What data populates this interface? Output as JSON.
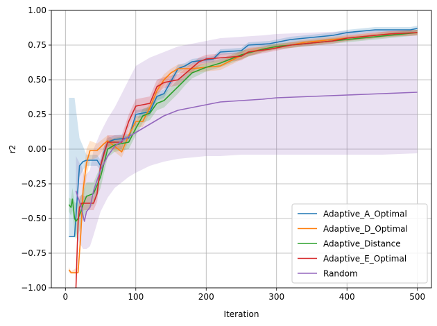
{
  "chart_data": {
    "type": "line",
    "title": "",
    "xlabel": "Iteration",
    "ylabel": "r2",
    "xlim": [
      -20,
      520
    ],
    "ylim": [
      -1.0,
      1.0
    ],
    "xticks": [
      0,
      100,
      200,
      300,
      400,
      500
    ],
    "xtick_labels": [
      "0",
      "100",
      "200",
      "300",
      "400",
      "500"
    ],
    "yticks": [
      -1.0,
      -0.75,
      -0.5,
      -0.25,
      0.0,
      0.25,
      0.5,
      0.75,
      1.0
    ],
    "ytick_labels": [
      "−1.00",
      "−0.75",
      "−0.50",
      "−0.25",
      "0.00",
      "0.25",
      "0.50",
      "0.75",
      "1.00"
    ],
    "grid": true,
    "legend_position": "lower-right",
    "series": [
      {
        "name": "Adaptive_A_Optimal",
        "color": "#1f77b4",
        "x": [
          5,
          13,
          20,
          25,
          30,
          45,
          50,
          55,
          60,
          70,
          90,
          100,
          120,
          130,
          140,
          160,
          170,
          180,
          210,
          220,
          250,
          260,
          290,
          300,
          320,
          340,
          380,
          400,
          440,
          490,
          500
        ],
        "y": [
          -0.63,
          -0.63,
          -0.12,
          -0.09,
          -0.08,
          -0.08,
          -0.12,
          -0.02,
          0.05,
          0.07,
          0.08,
          0.25,
          0.27,
          0.38,
          0.4,
          0.58,
          0.6,
          0.63,
          0.65,
          0.7,
          0.71,
          0.75,
          0.76,
          0.77,
          0.79,
          0.8,
          0.82,
          0.84,
          0.86,
          0.86,
          0.87
        ],
        "band_lower": [
          -0.63,
          -0.63,
          -0.2,
          -0.15,
          -0.12,
          -0.12,
          -0.16,
          -0.06,
          0.02,
          0.04,
          0.05,
          0.22,
          0.24,
          0.35,
          0.37,
          0.55,
          0.58,
          0.61,
          0.63,
          0.68,
          0.69,
          0.73,
          0.74,
          0.75,
          0.77,
          0.78,
          0.8,
          0.82,
          0.84,
          0.84,
          0.85
        ],
        "band_upper": [
          0.37,
          0.37,
          0.08,
          0.02,
          -0.04,
          -0.04,
          -0.08,
          0.02,
          0.08,
          0.1,
          0.11,
          0.28,
          0.3,
          0.41,
          0.43,
          0.61,
          0.62,
          0.65,
          0.67,
          0.72,
          0.73,
          0.77,
          0.78,
          0.79,
          0.81,
          0.82,
          0.84,
          0.86,
          0.88,
          0.88,
          0.89
        ]
      },
      {
        "name": "Adaptive_D_Optimal",
        "color": "#ff7f0e",
        "x": [
          5,
          8,
          18,
          22,
          25,
          30,
          35,
          45,
          55,
          60,
          70,
          80,
          90,
          100,
          110,
          120,
          130,
          140,
          150,
          160,
          170,
          180,
          220,
          240,
          260,
          280,
          300,
          320,
          340,
          360,
          380,
          420,
          460,
          500
        ],
        "y": [
          -0.87,
          -0.89,
          -0.89,
          -0.6,
          -0.3,
          -0.1,
          -0.01,
          -0.01,
          0.04,
          0.06,
          0.02,
          -0.02,
          0.1,
          0.2,
          0.2,
          0.3,
          0.42,
          0.5,
          0.55,
          0.58,
          0.58,
          0.58,
          0.6,
          0.65,
          0.7,
          0.72,
          0.74,
          0.75,
          0.77,
          0.78,
          0.79,
          0.81,
          0.83,
          0.84
        ],
        "band_lower": [
          -0.89,
          -0.9,
          -0.9,
          -0.7,
          -0.4,
          -0.2,
          -0.08,
          -0.06,
          0.0,
          0.02,
          -0.02,
          -0.06,
          0.06,
          0.16,
          0.16,
          0.26,
          0.38,
          0.46,
          0.52,
          0.55,
          0.55,
          0.55,
          0.57,
          0.62,
          0.67,
          0.7,
          0.72,
          0.73,
          0.75,
          0.76,
          0.77,
          0.79,
          0.81,
          0.82
        ],
        "band_upper": [
          -0.85,
          -0.88,
          -0.85,
          -0.5,
          -0.2,
          0.0,
          0.06,
          0.04,
          0.08,
          0.1,
          0.06,
          0.02,
          0.14,
          0.24,
          0.24,
          0.34,
          0.46,
          0.54,
          0.58,
          0.61,
          0.61,
          0.61,
          0.63,
          0.68,
          0.73,
          0.74,
          0.76,
          0.77,
          0.79,
          0.8,
          0.81,
          0.83,
          0.85,
          0.86
        ]
      },
      {
        "name": "Adaptive_Distance",
        "color": "#2ca02c",
        "x": [
          5,
          8,
          10,
          13,
          15,
          18,
          22,
          25,
          30,
          40,
          50,
          60,
          70,
          90,
          100,
          110,
          120,
          130,
          140,
          150,
          160,
          170,
          180,
          200,
          220,
          250,
          280,
          300,
          320,
          340,
          360,
          380,
          420,
          460,
          500
        ],
        "y": [
          -0.4,
          -0.42,
          -0.36,
          -0.5,
          -0.52,
          -0.5,
          -0.45,
          -0.4,
          -0.34,
          -0.32,
          -0.2,
          0.0,
          0.03,
          0.05,
          0.15,
          0.24,
          0.26,
          0.33,
          0.35,
          0.4,
          0.45,
          0.5,
          0.55,
          0.59,
          0.62,
          0.68,
          0.72,
          0.74,
          0.75,
          0.76,
          0.77,
          0.78,
          0.8,
          0.82,
          0.84
        ],
        "band_lower": [
          -0.45,
          -0.48,
          -0.44,
          -0.62,
          -0.65,
          -0.62,
          -0.56,
          -0.5,
          -0.44,
          -0.4,
          -0.28,
          -0.06,
          -0.02,
          0.0,
          0.1,
          0.19,
          0.21,
          0.28,
          0.3,
          0.35,
          0.4,
          0.46,
          0.51,
          0.56,
          0.59,
          0.65,
          0.7,
          0.72,
          0.73,
          0.74,
          0.75,
          0.76,
          0.78,
          0.8,
          0.82
        ],
        "band_upper": [
          -0.35,
          -0.36,
          -0.28,
          -0.38,
          -0.39,
          -0.38,
          -0.34,
          -0.3,
          -0.24,
          -0.24,
          -0.12,
          0.06,
          0.08,
          0.1,
          0.2,
          0.29,
          0.31,
          0.38,
          0.4,
          0.45,
          0.5,
          0.54,
          0.59,
          0.62,
          0.65,
          0.71,
          0.74,
          0.76,
          0.77,
          0.78,
          0.79,
          0.8,
          0.82,
          0.84,
          0.86
        ]
      },
      {
        "name": "Adaptive_E_Optimal",
        "color": "#d62728",
        "x": [
          15,
          18,
          20,
          23,
          27,
          40,
          45,
          50,
          55,
          60,
          70,
          80,
          90,
          100,
          120,
          130,
          140,
          160,
          190,
          200,
          250,
          260,
          290,
          300,
          320,
          340,
          360,
          380,
          400,
          420,
          460,
          500
        ],
        "y": [
          -1.0,
          -0.52,
          -0.42,
          -0.39,
          -0.39,
          -0.39,
          -0.32,
          -0.12,
          -0.03,
          0.05,
          0.05,
          0.05,
          0.2,
          0.31,
          0.33,
          0.45,
          0.48,
          0.5,
          0.63,
          0.65,
          0.67,
          0.7,
          0.72,
          0.73,
          0.75,
          0.76,
          0.77,
          0.78,
          0.8,
          0.81,
          0.83,
          0.84
        ],
        "band_lower": [
          -1.0,
          -0.62,
          -0.5,
          -0.45,
          -0.44,
          -0.44,
          -0.38,
          -0.18,
          -0.08,
          0.0,
          0.0,
          0.0,
          0.15,
          0.26,
          0.28,
          0.4,
          0.44,
          0.46,
          0.6,
          0.62,
          0.64,
          0.67,
          0.7,
          0.71,
          0.73,
          0.74,
          0.75,
          0.76,
          0.78,
          0.79,
          0.81,
          0.82
        ],
        "band_upper": [
          -0.95,
          -0.42,
          -0.34,
          -0.33,
          -0.34,
          -0.34,
          -0.26,
          -0.06,
          0.02,
          0.1,
          0.1,
          0.1,
          0.25,
          0.36,
          0.38,
          0.5,
          0.52,
          0.54,
          0.66,
          0.68,
          0.7,
          0.73,
          0.74,
          0.75,
          0.77,
          0.78,
          0.79,
          0.8,
          0.82,
          0.83,
          0.85,
          0.86
        ]
      },
      {
        "name": "Random",
        "color": "#9467bd",
        "x": [
          15,
          18,
          20,
          23,
          25,
          27,
          30,
          35,
          40,
          50,
          60,
          70,
          80,
          90,
          100,
          120,
          140,
          160,
          180,
          200,
          220,
          250,
          280,
          300,
          350,
          400,
          450,
          500
        ],
        "y": [
          -0.3,
          -0.35,
          -0.38,
          -0.42,
          -0.48,
          -0.52,
          -0.45,
          -0.42,
          -0.3,
          -0.15,
          -0.05,
          0.02,
          0.06,
          0.09,
          0.12,
          0.18,
          0.24,
          0.28,
          0.3,
          0.32,
          0.34,
          0.35,
          0.36,
          0.37,
          0.38,
          0.39,
          0.4,
          0.41
        ],
        "band_lower": [
          -0.6,
          -0.65,
          -0.68,
          -0.7,
          -0.72,
          -0.72,
          -0.72,
          -0.7,
          -0.62,
          -0.45,
          -0.35,
          -0.28,
          -0.24,
          -0.2,
          -0.17,
          -0.12,
          -0.09,
          -0.07,
          -0.06,
          -0.05,
          -0.05,
          -0.04,
          -0.04,
          -0.04,
          -0.04,
          -0.04,
          -0.04,
          -0.03
        ],
        "band_upper": [
          -0.05,
          -0.08,
          -0.1,
          -0.12,
          -0.15,
          -0.2,
          -0.18,
          -0.15,
          0.0,
          0.12,
          0.22,
          0.3,
          0.4,
          0.5,
          0.6,
          0.66,
          0.7,
          0.74,
          0.76,
          0.78,
          0.8,
          0.81,
          0.82,
          0.83,
          0.84,
          0.85,
          0.86,
          0.86
        ]
      }
    ]
  }
}
